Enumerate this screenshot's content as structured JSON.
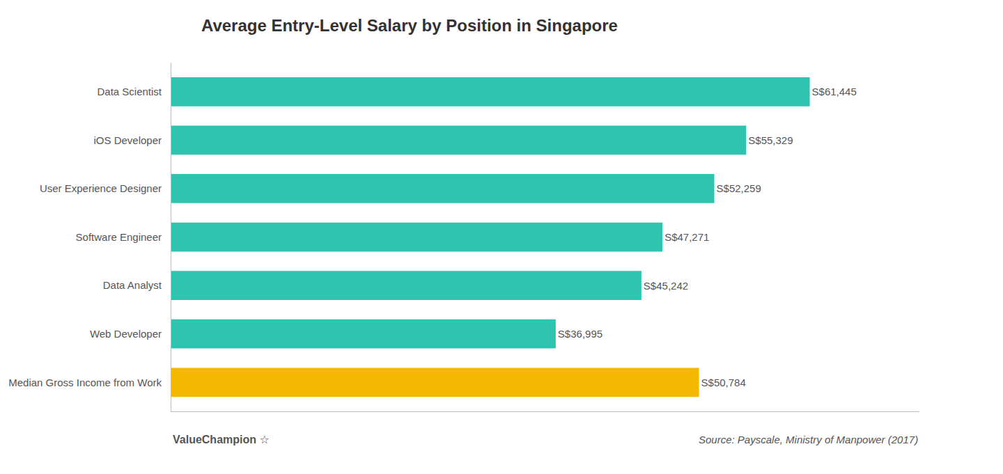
{
  "chart_data": {
    "type": "bar",
    "orientation": "horizontal",
    "title": "Average Entry-Level Salary by Position in Singapore",
    "categories": [
      "Median Gross Income from Work",
      "Web Developer",
      "Data Analyst",
      "Software Engineer",
      "User Experience Designer",
      "iOS Developer",
      "Data Scientist"
    ],
    "values": [
      50784,
      36995,
      45242,
      47271,
      52259,
      55329,
      61445
    ],
    "value_labels": [
      "S$50,784",
      "S$36,995",
      "S$45,242",
      "S$47,271",
      "S$52,259",
      "S$55,329",
      "S$61,445"
    ],
    "data_labels": true,
    "colors": [
      "#F5B800",
      "#2EC4B0",
      "#2EC4B0",
      "#2EC4B0",
      "#2EC4B0",
      "#2EC4B0",
      "#2EC4B0"
    ],
    "xlim": [
      0,
      72000
    ],
    "xticks": [],
    "tick_labels": "y",
    "grid": false,
    "annotations": [
      "ValueChampion",
      "☆",
      "Source: Payscale, Ministry of Manpower (2017)"
    ]
  }
}
